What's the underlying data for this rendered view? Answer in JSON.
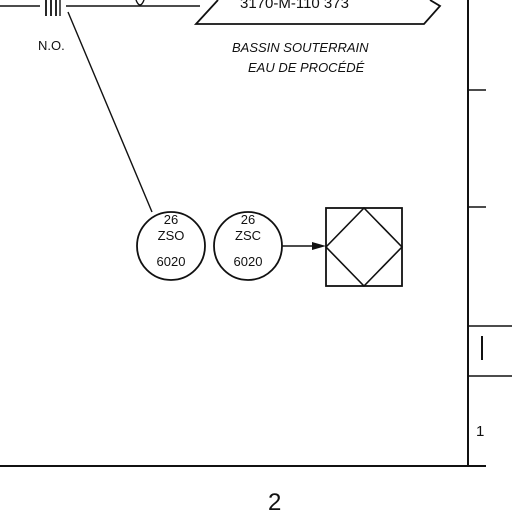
{
  "contact": {
    "label": "N.O."
  },
  "offpage": {
    "reference": "3170-M-110 373",
    "description_line1": "BASSIN SOUTERRAIN",
    "description_line2": "EAU DE PROCÉDÉ"
  },
  "instruments": [
    {
      "number": "26",
      "tag": "ZSO",
      "loop": "6020"
    },
    {
      "number": "26",
      "tag": "ZSC",
      "loop": "6020"
    }
  ],
  "border": {
    "zone_label": "2",
    "row_mark": "1"
  }
}
